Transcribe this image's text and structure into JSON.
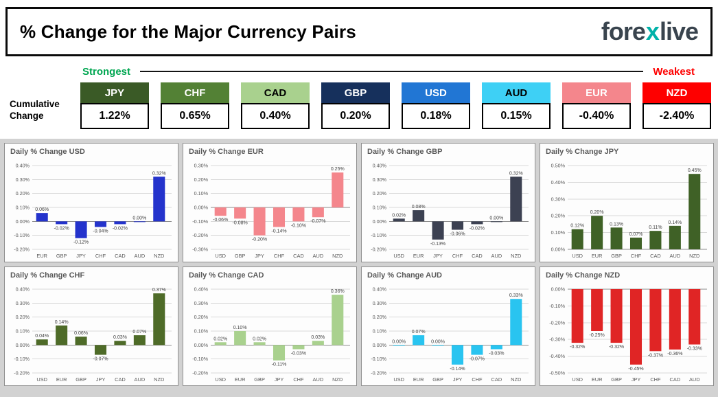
{
  "header": {
    "title": "% Change for the Major Currency Pairs",
    "logo": {
      "part1": "fore",
      "x": "x",
      "part2": "live"
    }
  },
  "scale": {
    "strongest": "Strongest",
    "weakest": "Weakest"
  },
  "cumulative": {
    "label_line1": "Cumulative",
    "label_line2": "Change",
    "items": [
      {
        "code": "JPY",
        "value": "1.22%",
        "bg": "#3a5a26",
        "fg": "#ffffff"
      },
      {
        "code": "CHF",
        "value": "0.65%",
        "bg": "#538135",
        "fg": "#ffffff"
      },
      {
        "code": "CAD",
        "value": "0.40%",
        "bg": "#a9d18e",
        "fg": "#000000"
      },
      {
        "code": "GBP",
        "value": "0.20%",
        "bg": "#16305c",
        "fg": "#ffffff"
      },
      {
        "code": "USD",
        "value": "0.18%",
        "bg": "#2176d4",
        "fg": "#ffffff"
      },
      {
        "code": "AUD",
        "value": "0.15%",
        "bg": "#3ed0f5",
        "fg": "#000000"
      },
      {
        "code": "EUR",
        "value": "-0.40%",
        "bg": "#f4868c",
        "fg": "#ffffff"
      },
      {
        "code": "NZD",
        "value": "-2.40%",
        "bg": "#fe0000",
        "fg": "#ffffff"
      }
    ]
  },
  "chart_data": [
    {
      "type": "bar",
      "title": "Daily % Change USD",
      "categories": [
        "EUR",
        "GBP",
        "JPY",
        "CHF",
        "CAD",
        "AUD",
        "NZD"
      ],
      "values": [
        0.06,
        -0.02,
        -0.12,
        -0.04,
        -0.02,
        0.0,
        0.32
      ],
      "labels": [
        "0.06%",
        "-0.02%",
        "-0.12%",
        "-0.04%",
        "-0.02%",
        "0.00%",
        "0.32%"
      ],
      "color": "#2433cc",
      "ylim": [
        -0.2,
        0.4
      ],
      "ytick_step": 0.1,
      "ylabel_format": "percent"
    },
    {
      "type": "bar",
      "title": "Daily % Change EUR",
      "categories": [
        "USD",
        "GBP",
        "JPY",
        "CHF",
        "CAD",
        "AUD",
        "NZD"
      ],
      "values": [
        -0.06,
        -0.08,
        -0.2,
        -0.14,
        -0.1,
        -0.07,
        0.25
      ],
      "labels": [
        "-0.06%",
        "-0.08%",
        "-0.20%",
        "-0.14%",
        "-0.10%",
        "-0.07%",
        "0.25%"
      ],
      "color": "#f4868c",
      "ylim": [
        -0.3,
        0.3
      ],
      "ytick_step": 0.1,
      "ylabel_format": "percent"
    },
    {
      "type": "bar",
      "title": "Daily % Change GBP",
      "categories": [
        "USD",
        "EUR",
        "JPY",
        "CHF",
        "CAD",
        "AUD",
        "NZD"
      ],
      "values": [
        0.02,
        0.08,
        -0.13,
        -0.06,
        -0.02,
        0.0,
        0.32
      ],
      "labels": [
        "0.02%",
        "0.08%",
        "-0.13%",
        "-0.06%",
        "-0.02%",
        "0.00%",
        "0.32%"
      ],
      "color": "#3c4152",
      "ylim": [
        -0.2,
        0.4
      ],
      "ytick_step": 0.1,
      "ylabel_format": "percent"
    },
    {
      "type": "bar",
      "title": "Daily % Change JPY",
      "categories": [
        "USD",
        "EUR",
        "GBP",
        "CHF",
        "CAD",
        "AUD",
        "NZD"
      ],
      "values": [
        0.12,
        0.2,
        0.13,
        0.07,
        0.11,
        0.14,
        0.45
      ],
      "labels": [
        "0.12%",
        "0.20%",
        "0.13%",
        "0.07%",
        "0.11%",
        "0.14%",
        "0.45%"
      ],
      "color": "#3f6126",
      "ylim": [
        0.0,
        0.5
      ],
      "ytick_step": 0.1,
      "ylabel_format": "percent"
    },
    {
      "type": "bar",
      "title": "Daily % Change CHF",
      "categories": [
        "USD",
        "EUR",
        "GBP",
        "JPY",
        "CAD",
        "AUD",
        "NZD"
      ],
      "values": [
        0.04,
        0.14,
        0.06,
        -0.07,
        0.03,
        0.07,
        0.37
      ],
      "labels": [
        "0.04%",
        "0.14%",
        "0.06%",
        "-0.07%",
        "0.03%",
        "0.07%",
        "0.37%"
      ],
      "color": "#4e6b28",
      "ylim": [
        -0.2,
        0.4
      ],
      "ytick_step": 0.1,
      "ylabel_format": "percent"
    },
    {
      "type": "bar",
      "title": "Daily % Change CAD",
      "categories": [
        "USD",
        "EUR",
        "GBP",
        "JPY",
        "CHF",
        "AUD",
        "NZD"
      ],
      "values": [
        0.02,
        0.1,
        0.02,
        -0.11,
        -0.03,
        0.03,
        0.36
      ],
      "labels": [
        "0.02%",
        "0.10%",
        "0.02%",
        "-0.11%",
        "-0.03%",
        "0.03%",
        "0.36%"
      ],
      "color": "#a9d18e",
      "ylim": [
        -0.2,
        0.4
      ],
      "ytick_step": 0.1,
      "ylabel_format": "percent"
    },
    {
      "type": "bar",
      "title": "Daily % Change AUD",
      "categories": [
        "USD",
        "EUR",
        "GBP",
        "JPY",
        "CHF",
        "CAD",
        "NZD"
      ],
      "values": [
        0.0,
        0.07,
        0.0,
        -0.14,
        -0.07,
        -0.03,
        0.33
      ],
      "labels": [
        "0.00%",
        "0.07%",
        "0.00%",
        "-0.14%",
        "-0.07%",
        "-0.03%",
        "0.33%"
      ],
      "color": "#29c4f0",
      "ylim": [
        -0.2,
        0.4
      ],
      "ytick_step": 0.1,
      "ylabel_format": "percent"
    },
    {
      "type": "bar",
      "title": "Daily % Change NZD",
      "categories": [
        "USD",
        "EUR",
        "GBP",
        "JPY",
        "CHF",
        "CAD",
        "AUD"
      ],
      "values": [
        -0.32,
        -0.25,
        -0.32,
        -0.45,
        -0.37,
        -0.36,
        -0.33
      ],
      "labels": [
        "-0.32%",
        "-0.25%",
        "-0.32%",
        "-0.45%",
        "-0.37%",
        "-0.36%",
        "-0.33%"
      ],
      "color": "#e02525",
      "ylim": [
        -0.5,
        0.0
      ],
      "ytick_step": 0.1,
      "ylabel_format": "percent"
    }
  ]
}
